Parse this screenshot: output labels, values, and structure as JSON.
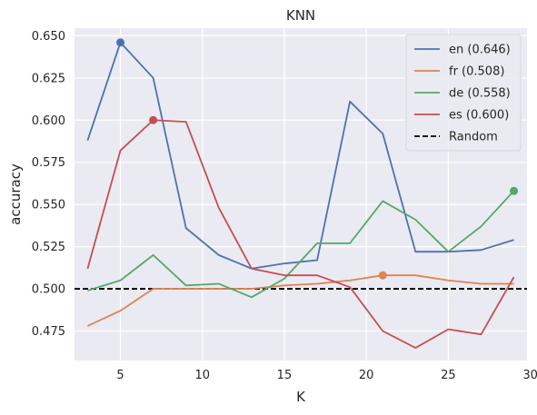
{
  "chart_data": {
    "type": "line",
    "title": "KNN",
    "xlabel": "K",
    "ylabel": "accuracy",
    "xlim": [
      2.2,
      29.8
    ],
    "ylim": [
      0.4575,
      0.6545
    ],
    "xticks": [
      5,
      10,
      15,
      20,
      25,
      30
    ],
    "yticks": [
      0.475,
      0.5,
      0.525,
      0.55,
      0.575,
      0.6,
      0.625,
      0.65
    ],
    "ytick_labels": [
      "0.475",
      "0.500",
      "0.525",
      "0.550",
      "0.575",
      "0.600",
      "0.625",
      "0.650"
    ],
    "grid": true,
    "legend_position": "top-right",
    "x": [
      3,
      5,
      7,
      9,
      11,
      13,
      15,
      17,
      19,
      21,
      23,
      25,
      27,
      29
    ],
    "series": [
      {
        "name": "en (0.646)",
        "color": "#4c72b0",
        "values": [
          0.588,
          0.646,
          0.625,
          0.536,
          0.52,
          0.512,
          0.515,
          0.517,
          0.611,
          0.592,
          0.522,
          0.522,
          0.523,
          0.529
        ],
        "best": {
          "x": 5,
          "y": 0.646
        }
      },
      {
        "name": "fr (0.508)",
        "color": "#dd8452",
        "values": [
          0.478,
          0.487,
          0.5,
          0.5,
          0.5,
          0.5,
          0.502,
          0.503,
          0.505,
          0.508,
          0.508,
          0.505,
          0.503,
          0.503
        ],
        "best": {
          "x": 21,
          "y": 0.508
        }
      },
      {
        "name": "de (0.558)",
        "color": "#55a868",
        "values": [
          0.499,
          0.505,
          0.52,
          0.502,
          0.503,
          0.495,
          0.506,
          0.527,
          0.527,
          0.552,
          0.541,
          0.522,
          0.537,
          0.558
        ],
        "best": {
          "x": 29,
          "y": 0.558
        }
      },
      {
        "name": "es (0.600)",
        "color": "#c44e52",
        "values": [
          0.512,
          0.582,
          0.6,
          0.599,
          0.548,
          0.512,
          0.508,
          0.508,
          0.501,
          0.475,
          0.465,
          0.476,
          0.473,
          0.507
        ],
        "best": {
          "x": 7,
          "y": 0.6
        }
      }
    ],
    "reference": {
      "name": "Random",
      "y": 0.5,
      "color": "#000000",
      "style": "dashed"
    }
  }
}
